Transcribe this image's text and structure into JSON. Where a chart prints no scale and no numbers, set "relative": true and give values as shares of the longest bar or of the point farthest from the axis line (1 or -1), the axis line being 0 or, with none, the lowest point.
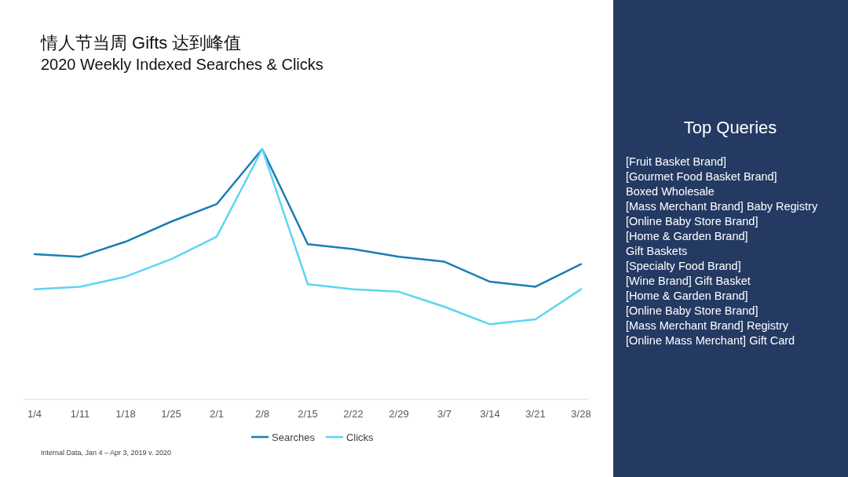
{
  "chart_data": [
    {
      "type": "line",
      "title": "情人节当周 Gifts 达到峰值",
      "subtitle": "2020 Weekly Indexed Searches & Clicks",
      "relative": true,
      "tick_labels": "x",
      "legend": "bottom",
      "categories": [
        "1/4",
        "1/11",
        "1/18",
        "1/25",
        "2/1",
        "2/8",
        "2/15",
        "2/22",
        "2/29",
        "3/7",
        "3/14",
        "3/21",
        "3/28"
      ],
      "series": [
        {
          "name": "Searches",
          "color": "#1b7db5",
          "values": [
            0.58,
            0.57,
            0.63,
            0.71,
            0.78,
            1.0,
            0.62,
            0.6,
            0.57,
            0.55,
            0.47,
            0.45,
            0.54
          ]
        },
        {
          "name": "Clicks",
          "color": "#5cd6f2",
          "values": [
            0.44,
            0.45,
            0.49,
            0.56,
            0.65,
            1.0,
            0.46,
            0.44,
            0.43,
            0.37,
            0.3,
            0.32,
            0.44
          ]
        }
      ],
      "annotations": [
        "Internal Data, Jan 4 – Apr 3, 2019 v. 2020"
      ]
    },
    {
      "type": "other",
      "title": "Top Queries",
      "annotations": [
        "[Fruit Basket Brand]",
        "[Gourmet Food Basket Brand]",
        "Boxed Wholesale",
        "[Mass Merchant Brand] Baby Registry",
        "[Online Baby Store Brand]",
        "[Home & Garden Brand]",
        "Gift Baskets",
        "[Specialty Food Brand]",
        "[Wine Brand] Gift Basket",
        "[Home & Garden Brand]",
        "[Online Baby Store Brand]",
        "[Mass Merchant Brand] Registry",
        "[Online Mass Merchant] Gift Card"
      ]
    }
  ]
}
